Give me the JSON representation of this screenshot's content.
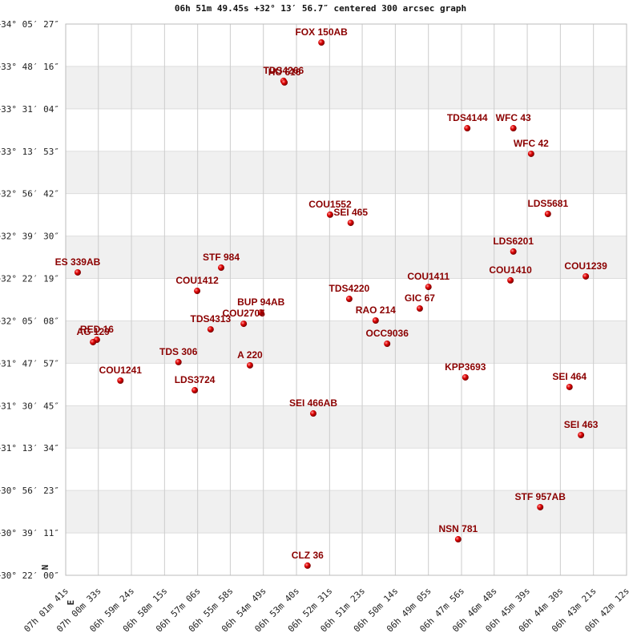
{
  "chart_data": {
    "type": "scatter",
    "title": "06h 51m 49.45s +32° 13′ 56.7″ centered 300 arcsec graph",
    "compass": {
      "north": "N",
      "east": "E"
    },
    "color": "#cc0000",
    "labels": [
      "FOX 150AB",
      "TDS4266",
      "HU 616",
      "TDS4144",
      "WFC  43",
      "WFC  42",
      "COU1552",
      "SEI 465",
      "LDS5681",
      "LDS6201",
      "ES  339AB",
      "STF 984",
      "COU1412",
      "COU1411",
      "COU1410",
      "COU1239",
      "TDS4220",
      "GIC  67",
      "RAO 214",
      "BUP  94AB",
      "COU2705",
      "TDS4313",
      "OCC9036",
      "RED  16",
      "AG  129",
      "TDS 306",
      "A   220",
      "COU1241",
      "KPP3693",
      "SEI 464",
      "LDS3724",
      "SEI 466AB",
      "SEI 463",
      "STF 957AB",
      "NSN 781",
      "CLZ  36"
    ],
    "x": [
      24768,
      24847,
      24845,
      24464,
      24368,
      24331,
      24750,
      24707,
      24296,
      24368,
      25276,
      24977,
      25027,
      24545,
      24374,
      24217,
      24710,
      24563,
      24655,
      24894,
      24930,
      24999,
      24631,
      25236,
      25244,
      25066,
      24917,
      25187,
      24468,
      24251,
      25032,
      24785,
      24227,
      24312,
      24483,
      24797
    ],
    "values": [
      33.966,
      33.707,
      33.696,
      33.387,
      33.387,
      33.214,
      32.803,
      32.748,
      32.808,
      32.554,
      32.413,
      32.445,
      32.288,
      32.315,
      32.359,
      32.386,
      32.234,
      32.169,
      32.088,
      32.142,
      32.066,
      32.028,
      31.931,
      31.958,
      31.942,
      31.807,
      31.785,
      31.682,
      31.704,
      31.639,
      31.617,
      31.46,
      31.314,
      30.827,
      30.61,
      30.432
    ],
    "xlim": [
      25301,
      24132
    ],
    "ylim": [
      30.3667,
      34.0908
    ],
    "xticks": [
      {
        "value": 25301,
        "label": "07h 01m 41s"
      },
      {
        "value": 25233,
        "label": "07h 00m 33s"
      },
      {
        "value": 25164,
        "label": "06h 59m 24s"
      },
      {
        "value": 25095,
        "label": "06h 58m 15s"
      },
      {
        "value": 25026,
        "label": "06h 57m 06s"
      },
      {
        "value": 24958,
        "label": "06h 55m 58s"
      },
      {
        "value": 24889,
        "label": "06h 54m 49s"
      },
      {
        "value": 24820,
        "label": "06h 53m 40s"
      },
      {
        "value": 24751,
        "label": "06h 52m 31s"
      },
      {
        "value": 24683,
        "label": "06h 51m 23s"
      },
      {
        "value": 24614,
        "label": "06h 50m 14s"
      },
      {
        "value": 24545,
        "label": "06h 49m 05s"
      },
      {
        "value": 24476,
        "label": "06h 47m 56s"
      },
      {
        "value": 24408,
        "label": "06h 46m 48s"
      },
      {
        "value": 24339,
        "label": "06h 45m 39s"
      },
      {
        "value": 24270,
        "label": "06h 44m 30s"
      },
      {
        "value": 24201,
        "label": "06h 43m 21s"
      },
      {
        "value": 24132,
        "label": "06h 42m 12s"
      }
    ],
    "yticks": [
      {
        "value": 30.3667,
        "label": "+30° 22′ 00″"
      },
      {
        "value": 30.6531,
        "label": "+30° 39′ 11″"
      },
      {
        "value": 30.9397,
        "label": "+30° 56′ 23″"
      },
      {
        "value": 31.2261,
        "label": "+31° 13′ 34″"
      },
      {
        "value": 31.5125,
        "label": "+31° 30′ 45″"
      },
      {
        "value": 31.7992,
        "label": "+31° 47′ 57″"
      },
      {
        "value": 32.0856,
        "label": "+32° 05′ 08″"
      },
      {
        "value": 32.3719,
        "label": "+32° 22′ 19″"
      },
      {
        "value": 32.6583,
        "label": "+32° 39′ 30″"
      },
      {
        "value": 32.945,
        "label": "+32° 56′ 42″"
      },
      {
        "value": 33.2314,
        "label": "+33° 13′ 53″"
      },
      {
        "value": 33.5178,
        "label": "+33° 31′ 04″"
      },
      {
        "value": 33.8044,
        "label": "+33° 48′ 16″"
      },
      {
        "value": 34.0908,
        "label": "+34° 05′ 27″"
      }
    ],
    "grid": true
  }
}
